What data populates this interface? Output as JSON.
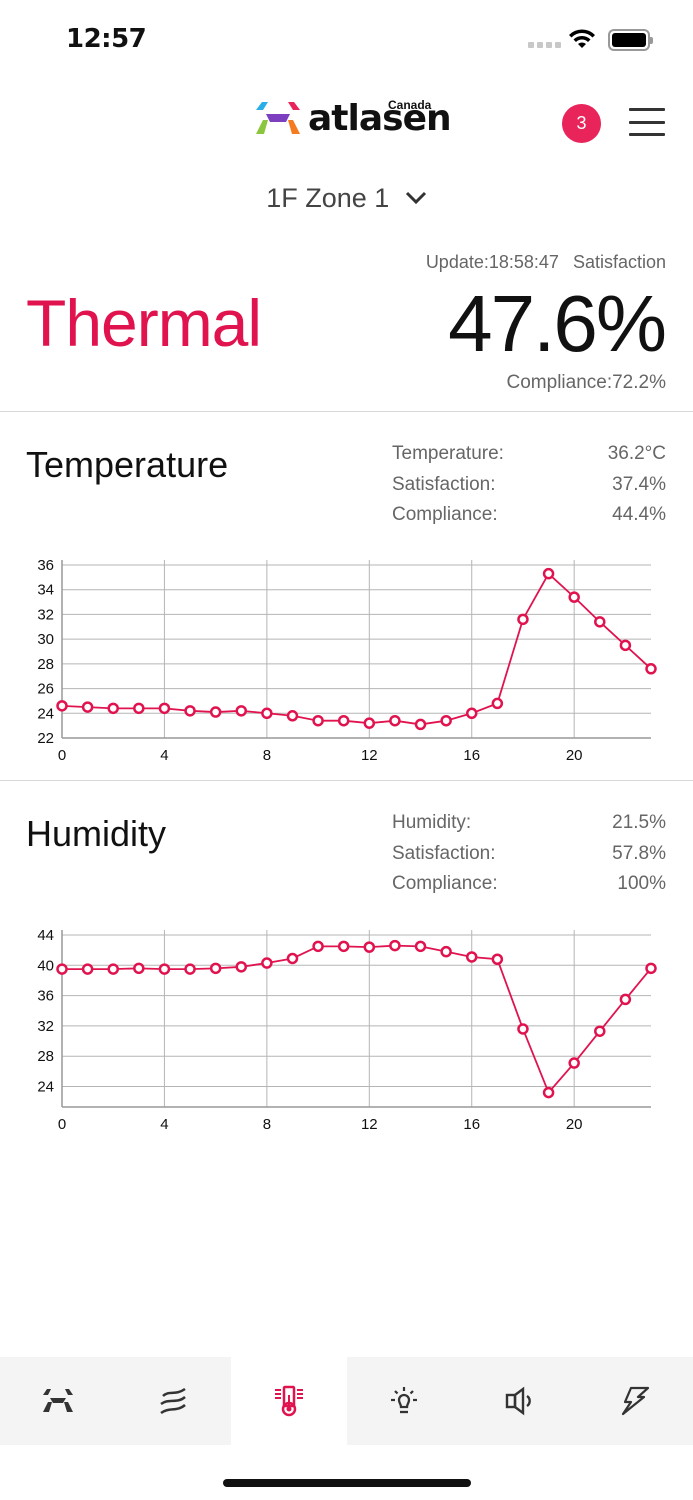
{
  "status_bar": {
    "time": "12:57"
  },
  "header": {
    "logo_text": "atlasen",
    "logo_region": "Canada",
    "notification_count": "3"
  },
  "zone_selector": {
    "label": "1F Zone 1"
  },
  "summary": {
    "update_label": "Update:18:58:47",
    "satisfaction_label": "Satisfaction",
    "category": "Thermal",
    "satisfaction_value": "47.6%",
    "compliance": "Compliance:72.2%"
  },
  "temperature": {
    "title": "Temperature",
    "stats": [
      {
        "label": "Temperature:",
        "value": "36.2°C"
      },
      {
        "label": "Satisfaction:",
        "value": "37.4%"
      },
      {
        "label": "Compliance:",
        "value": "44.4%"
      }
    ]
  },
  "humidity": {
    "title": "Humidity",
    "stats": [
      {
        "label": "Humidity:",
        "value": "21.5%"
      },
      {
        "label": "Satisfaction:",
        "value": "57.8%"
      },
      {
        "label": "Compliance:",
        "value": "100%"
      }
    ]
  },
  "colors": {
    "accent": "#e0134f",
    "badge": "#e8245a",
    "tabbar_bg": "#f4f4f4"
  },
  "tabs": [
    {
      "name": "home",
      "icon": "atlasen-logo-icon",
      "active": false
    },
    {
      "name": "air",
      "icon": "air-waves-icon",
      "active": false
    },
    {
      "name": "thermal",
      "icon": "thermometer-icon",
      "active": true
    },
    {
      "name": "light",
      "icon": "lightbulb-icon",
      "active": false
    },
    {
      "name": "sound",
      "icon": "speaker-icon",
      "active": false
    },
    {
      "name": "energy",
      "icon": "lightning-icon",
      "active": false
    }
  ],
  "chart_data": [
    {
      "type": "line",
      "title": "Temperature",
      "xlabel": "",
      "ylabel": "",
      "x": [
        0,
        1,
        2,
        3,
        4,
        5,
        6,
        7,
        8,
        9,
        10,
        11,
        12,
        13,
        14,
        15,
        16,
        17,
        18,
        19,
        20,
        21,
        22,
        23
      ],
      "values": [
        24.6,
        24.5,
        24.4,
        24.4,
        24.4,
        24.2,
        24.1,
        24.2,
        24.0,
        23.8,
        23.4,
        23.4,
        23.2,
        23.4,
        23.1,
        23.4,
        24.0,
        24.8,
        31.6,
        35.3,
        33.4,
        31.4,
        29.5,
        27.6
      ],
      "xticks": [
        0,
        4,
        8,
        12,
        16,
        20
      ],
      "yticks": [
        22,
        24,
        26,
        28,
        30,
        32,
        34,
        36
      ],
      "ylim": [
        22,
        36
      ],
      "xlim": [
        0,
        23
      ],
      "grid": true
    },
    {
      "type": "line",
      "title": "Humidity",
      "xlabel": "",
      "ylabel": "",
      "x": [
        0,
        1,
        2,
        3,
        4,
        5,
        6,
        7,
        8,
        9,
        10,
        11,
        12,
        13,
        14,
        15,
        16,
        17,
        18,
        19,
        20,
        21,
        22,
        23
      ],
      "values": [
        39.5,
        39.5,
        39.5,
        39.6,
        39.5,
        39.5,
        39.6,
        39.8,
        40.3,
        40.9,
        42.5,
        42.5,
        42.4,
        42.6,
        42.5,
        41.8,
        41.1,
        40.8,
        31.6,
        23.2,
        27.1,
        31.3,
        35.5,
        39.6
      ],
      "xticks": [
        0,
        4,
        8,
        12,
        16,
        20
      ],
      "yticks": [
        24,
        28,
        32,
        36,
        40,
        44
      ],
      "ylim": [
        21.3,
        44
      ],
      "xlim": [
        0,
        23
      ],
      "grid": true
    }
  ]
}
